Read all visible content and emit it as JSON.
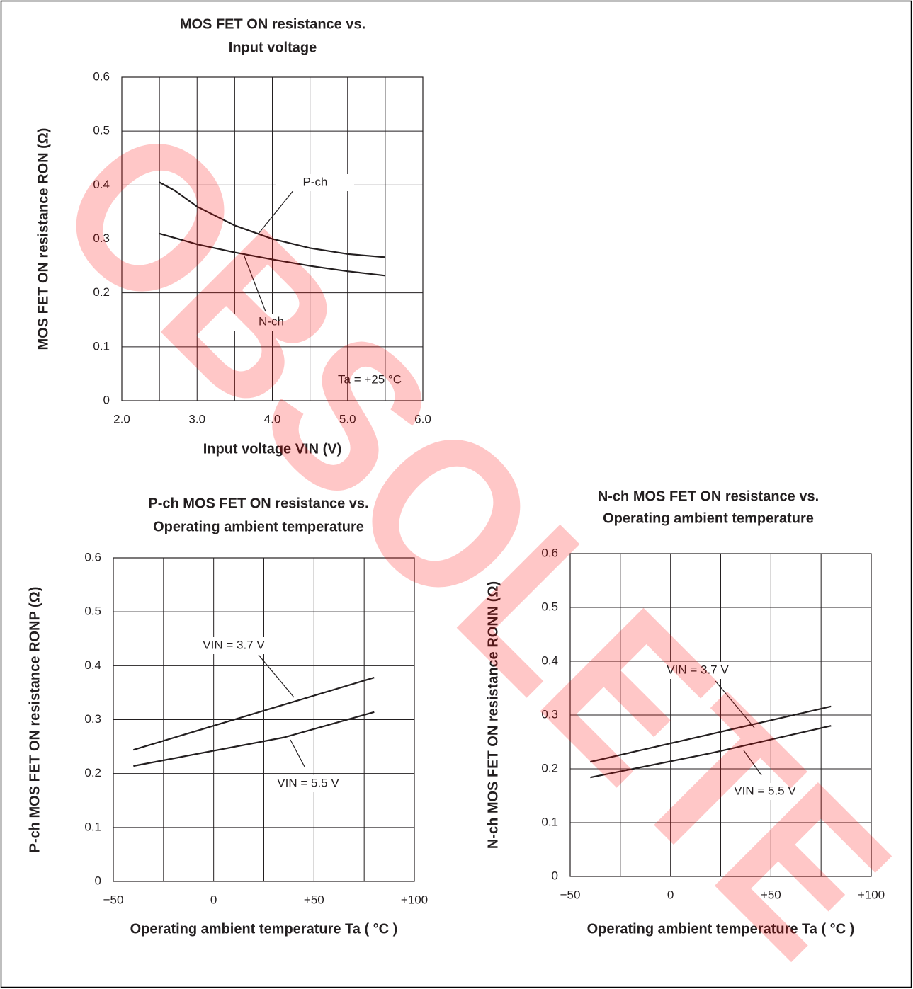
{
  "watermark": "OBSOLETE",
  "chart_data": [
    {
      "type": "line",
      "title": [
        "MOS FET ON resistance vs.",
        "Input voltage"
      ],
      "x_label": "Input voltage VIN (V)",
      "y_label": "MOS FET ON resistance RON (Ω)",
      "annotation": "Ta = +25 °C",
      "xlim": [
        2,
        6
      ],
      "xticks": [
        {
          "value": 2,
          "label": "2.0"
        },
        {
          "value": 3,
          "label": "3.0"
        },
        {
          "value": 4,
          "label": "4.0"
        },
        {
          "value": 5,
          "label": "5.0"
        },
        {
          "value": 6,
          "label": "6.0"
        }
      ],
      "x_minor_ticks": [
        2.5,
        3.5,
        4.5,
        5.5
      ],
      "ylim": [
        0,
        0.6
      ],
      "yticks": [
        0,
        0.1,
        0.2,
        0.3,
        0.4,
        0.5,
        0.6
      ],
      "grid": true,
      "series": [
        {
          "name": "P-ch",
          "color": "#231f20",
          "x": [
            2.5,
            2.7,
            3.0,
            3.5,
            4.0,
            4.5,
            5.0,
            5.5
          ],
          "values": [
            0.405,
            0.39,
            0.36,
            0.325,
            0.3,
            0.283,
            0.272,
            0.266
          ]
        },
        {
          "name": "N-ch",
          "color": "#231f20",
          "x": [
            2.5,
            3.0,
            3.5,
            4.0,
            4.5,
            5.0,
            5.5
          ],
          "values": [
            0.31,
            0.29,
            0.275,
            0.262,
            0.25,
            0.24,
            0.232
          ]
        }
      ]
    },
    {
      "type": "line",
      "title": [
        "P-ch MOS FET ON resistance vs.",
        "Operating ambient temperature"
      ],
      "x_label": "Operating ambient temperature Ta ( °C )",
      "y_label": "P-ch MOS FET ON resistance RONP (Ω)",
      "xlim": [
        -50,
        100
      ],
      "xticks": [
        {
          "value": -50,
          "label": "−50"
        },
        0,
        {
          "value": 50,
          "label": "+50"
        },
        {
          "value": 100,
          "label": "+100"
        }
      ],
      "x_minor_ticks": [
        -25,
        25,
        75
      ],
      "ylim": [
        0,
        0.6
      ],
      "yticks": [
        0,
        0.1,
        0.2,
        0.3,
        0.4,
        0.5,
        0.6
      ],
      "grid": true,
      "series": [
        {
          "name": "VIN = 3.7 V",
          "color": "#231f20",
          "x": [
            -40,
            80
          ],
          "values": [
            0.244,
            0.378
          ]
        },
        {
          "name": "VIN = 5.5 V",
          "color": "#231f20",
          "x": [
            -40,
            35,
            80
          ],
          "values": [
            0.214,
            0.267,
            0.314
          ]
        }
      ]
    },
    {
      "type": "line",
      "title": [
        "N-ch MOS FET ON resistance vs.",
        "Operating ambient temperature"
      ],
      "x_label": "Operating ambient temperature Ta ( °C )",
      "y_label": "N-ch MOS FET ON resistance RONN (Ω)",
      "xlim": [
        -50,
        100
      ],
      "xticks": [
        {
          "value": -50,
          "label": "−50"
        },
        0,
        {
          "value": 50,
          "label": "+50"
        },
        {
          "value": 100,
          "label": "+100"
        }
      ],
      "x_minor_ticks": [
        -25,
        25,
        75
      ],
      "ylim": [
        0,
        0.6
      ],
      "yticks": [
        0,
        0.1,
        0.2,
        0.3,
        0.4,
        0.5,
        0.6
      ],
      "grid": true,
      "series": [
        {
          "name": "VIN = 3.7 V",
          "color": "#231f20",
          "x": [
            -40,
            80
          ],
          "values": [
            0.213,
            0.316
          ]
        },
        {
          "name": "VIN = 5.5 V",
          "color": "#231f20",
          "x": [
            -40,
            20,
            80
          ],
          "values": [
            0.184,
            0.229,
            0.28
          ]
        }
      ]
    }
  ]
}
